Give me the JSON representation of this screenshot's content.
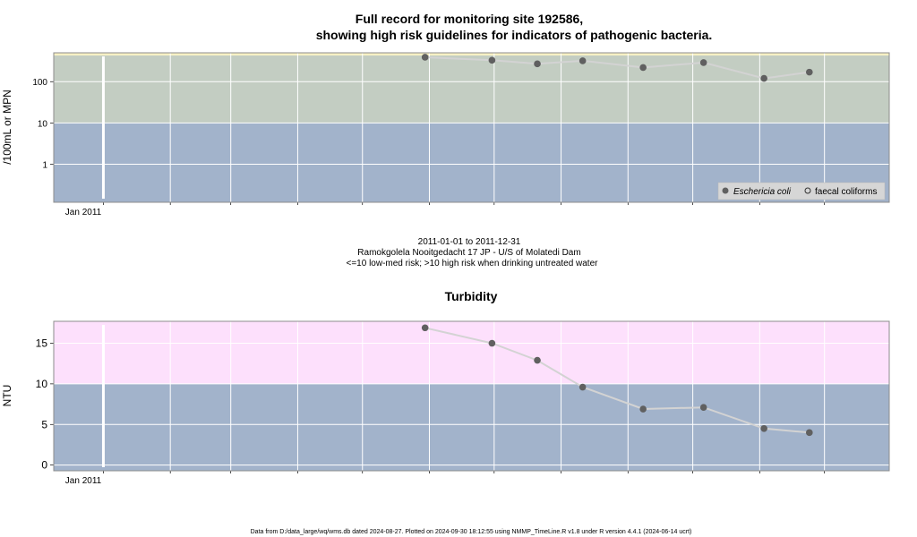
{
  "colors": {
    "band_low": "#a2b3cb",
    "band_high_bacteria": "#c3cdc2",
    "band_top": "#f7f1c4",
    "band_high_turbidity": "#fde0fc",
    "grid": "#ffffff",
    "year_line": "#ffffff",
    "line": "#d3d3d3",
    "point": "#606060",
    "frame": "#8c8c8c"
  },
  "chart_data": [
    {
      "type": "line",
      "title_line1": "Full record for monitoring site 192586,",
      "title_line2": "showing high risk guidelines for indicators of pathogenic bacteria.",
      "xlabel": "",
      "ylabel": "/100mL or MPN",
      "scale": "log",
      "ylim": [
        0.12,
        500
      ],
      "xlim": [
        "2010-12-09",
        "2011-12-31"
      ],
      "y_ticks": [
        1,
        10,
        100
      ],
      "y_tick_labels": [
        "1",
        "10",
        "100"
      ],
      "x_tick_labels": [
        "Jan 2011"
      ],
      "bands": [
        {
          "from": 0.12,
          "to": 10,
          "color": "band_low"
        },
        {
          "from": 10,
          "to": 430,
          "color": "band_high_bacteria"
        },
        {
          "from": 430,
          "to": 500,
          "color": "band_top"
        }
      ],
      "legend_position": "bottom-right",
      "legend": [
        {
          "label": "Eschericia coli",
          "marker": "filled-circle"
        },
        {
          "label": "faecal coliforms",
          "marker": "open-circle"
        }
      ],
      "series": [
        {
          "name": "Eschericia coli",
          "x": [
            "2011-05-30",
            "2011-06-30",
            "2011-07-21",
            "2011-08-11",
            "2011-09-08",
            "2011-10-06",
            "2011-11-03",
            "2011-11-24"
          ],
          "values": [
            390,
            330,
            270,
            320,
            220,
            290,
            120,
            170
          ]
        }
      ]
    },
    {
      "type": "line",
      "title": "Turbidity",
      "xlabel": "",
      "ylabel": "NTU",
      "scale": "linear",
      "ylim": [
        -0.7,
        17.7
      ],
      "xlim": [
        "2010-12-09",
        "2011-12-31"
      ],
      "y_ticks": [
        0,
        5,
        10,
        15
      ],
      "y_tick_labels": [
        "0",
        "5",
        "10",
        "15"
      ],
      "x_tick_labels": [
        "Jan 2011"
      ],
      "bands": [
        {
          "from": -0.7,
          "to": 10,
          "color": "band_low"
        },
        {
          "from": 10,
          "to": 17.7,
          "color": "band_high_turbidity"
        }
      ],
      "series": [
        {
          "name": "Turbidity",
          "x": [
            "2011-05-30",
            "2011-06-30",
            "2011-07-21",
            "2011-08-11",
            "2011-09-08",
            "2011-10-06",
            "2011-11-03",
            "2011-11-24"
          ],
          "values": [
            16.9,
            15.0,
            12.9,
            9.6,
            6.9,
            7.1,
            4.5,
            4.0
          ]
        }
      ]
    }
  ],
  "captions": {
    "date_range": "2011-01-01 to 2011-12-31",
    "site": "Ramokgolela Nooitgedacht 17 JP - U/S of Molatedi Dam",
    "risk": "<=10 low-med risk; >10 high risk when drinking untreated water"
  },
  "footer": "Data from D:/data_large/wq/wms.db dated 2024-08-27. Plotted on 2024-09-30 18:12:55 using NMMP_TimeLine.R v1.8 under R version 4.4.1 (2024-06-14 ucrt)"
}
